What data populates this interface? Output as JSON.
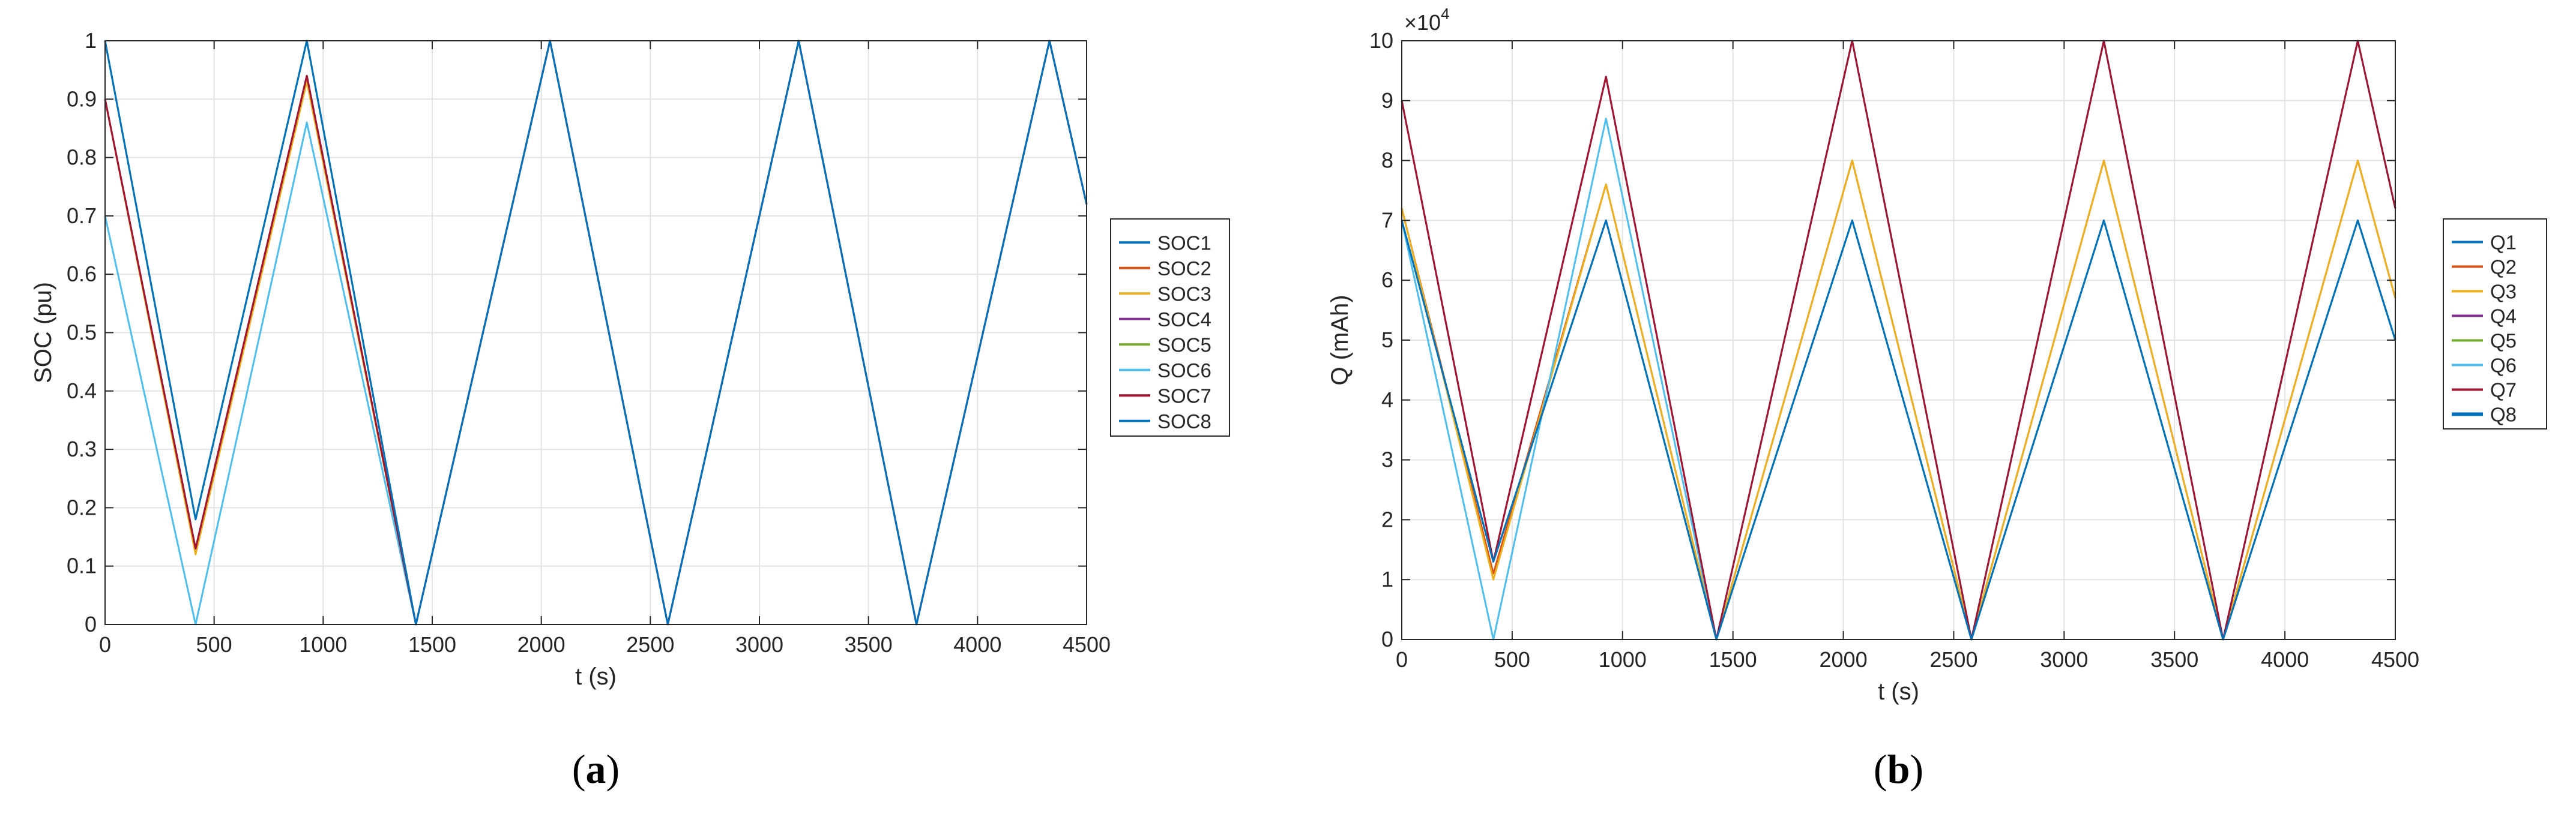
{
  "chart_data": [
    {
      "type": "line",
      "panel": "a",
      "caption_open": "(",
      "caption_letter": "a",
      "caption_close": ")",
      "xlabel": "t (s)",
      "ylabel": "SOC (pu)",
      "xlim": [
        0,
        4500
      ],
      "ylim": [
        0,
        1
      ],
      "xticks": [
        0,
        500,
        1000,
        1500,
        2000,
        2500,
        3000,
        3500,
        4000,
        4500
      ],
      "xtick_labels": [
        "0",
        "500",
        "1000",
        "1500",
        "2000",
        "2500",
        "3000",
        "3500",
        "4000",
        "4500"
      ],
      "yticks": [
        0,
        0.1,
        0.2,
        0.3,
        0.4,
        0.5,
        0.6,
        0.7,
        0.8,
        0.9,
        1
      ],
      "ytick_labels": [
        "0",
        "0.1",
        "0.2",
        "0.3",
        "0.4",
        "0.5",
        "0.6",
        "0.7",
        "0.8",
        "0.9",
        "1"
      ],
      "grid": true,
      "legend": "right",
      "series": [
        {
          "name": "SOC1",
          "color": "#0072BD",
          "x": [
            0,
            415,
            925,
            1425,
            2040,
            2580,
            3180,
            3720,
            4330,
            4500
          ],
          "y": [
            1.0,
            0.18,
            1.0,
            0.0,
            1.0,
            0.0,
            1.0,
            0.0,
            1.0,
            0.72
          ]
        },
        {
          "name": "SOC2",
          "color": "#D95319",
          "x": [
            0,
            415,
            925,
            1425,
            2040,
            2580,
            3180,
            3720,
            4330,
            4500
          ],
          "y": [
            0.9,
            0.13,
            0.94,
            0.0,
            1.0,
            0.0,
            1.0,
            0.0,
            1.0,
            0.72
          ]
        },
        {
          "name": "SOC3",
          "color": "#EDB120",
          "x": [
            0,
            415,
            925,
            1425,
            2040,
            2580,
            3180,
            3720,
            4330,
            4500
          ],
          "y": [
            0.9,
            0.12,
            0.93,
            0.0,
            1.0,
            0.0,
            1.0,
            0.0,
            1.0,
            0.72
          ]
        },
        {
          "name": "SOC4",
          "color": "#7E2F8E",
          "x": [
            0,
            415,
            925,
            1425,
            2040,
            2580,
            3180,
            3720,
            4330,
            4500
          ],
          "y": [
            0.9,
            0.13,
            0.94,
            0.0,
            1.0,
            0.0,
            1.0,
            0.0,
            1.0,
            0.72
          ]
        },
        {
          "name": "SOC5",
          "color": "#77AC30",
          "x": [
            0,
            415,
            925,
            1425,
            2040,
            2580,
            3180,
            3720,
            4330,
            4500
          ],
          "y": [
            1.0,
            0.18,
            1.0,
            0.0,
            1.0,
            0.0,
            1.0,
            0.0,
            1.0,
            0.72
          ]
        },
        {
          "name": "SOC6",
          "color": "#4DBEEE",
          "x": [
            0,
            415,
            925,
            1425,
            2040,
            2580,
            3180,
            3720,
            4330,
            4500
          ],
          "y": [
            0.7,
            0.0,
            0.86,
            0.0,
            1.0,
            0.0,
            1.0,
            0.0,
            1.0,
            0.72
          ]
        },
        {
          "name": "SOC7",
          "color": "#A2142F",
          "x": [
            0,
            415,
            925,
            1425,
            2040,
            2580,
            3180,
            3720,
            4330,
            4500
          ],
          "y": [
            0.9,
            0.13,
            0.94,
            0.0,
            1.0,
            0.0,
            1.0,
            0.0,
            1.0,
            0.72
          ]
        },
        {
          "name": "SOC8",
          "color": "#0072BD",
          "x": [
            0,
            415,
            925,
            1425,
            2040,
            2580,
            3180,
            3720,
            4330,
            4500
          ],
          "y": [
            1.0,
            0.18,
            1.0,
            0.0,
            1.0,
            0.0,
            1.0,
            0.0,
            1.0,
            0.72
          ]
        }
      ]
    },
    {
      "type": "line",
      "panel": "b",
      "caption_open": "(",
      "caption_letter": "b",
      "caption_close": ")",
      "xlabel": "t (s)",
      "ylabel": "Q (mAh)",
      "exponent_label": "×10",
      "exponent_power": "4",
      "xlim": [
        0,
        4500
      ],
      "ylim": [
        0,
        10
      ],
      "xticks": [
        0,
        500,
        1000,
        1500,
        2000,
        2500,
        3000,
        3500,
        4000,
        4500
      ],
      "xtick_labels": [
        "0",
        "500",
        "1000",
        "1500",
        "2000",
        "2500",
        "3000",
        "3500",
        "4000",
        "4500"
      ],
      "yticks": [
        0,
        1,
        2,
        3,
        4,
        5,
        6,
        7,
        8,
        9,
        10
      ],
      "ytick_labels": [
        "0",
        "1",
        "2",
        "3",
        "4",
        "5",
        "6",
        "7",
        "8",
        "9",
        "10"
      ],
      "grid": true,
      "legend": "right",
      "series": [
        {
          "name": "Q1",
          "color": "#0072BD",
          "x": [
            0,
            415,
            925,
            1425,
            2040,
            2580,
            3180,
            3720,
            4330,
            4500
          ],
          "y": [
            7.0,
            1.3,
            7.0,
            0.0,
            7.0,
            0.0,
            7.0,
            0.0,
            7.0,
            5.0
          ]
        },
        {
          "name": "Q2",
          "color": "#D95319",
          "x": [
            0,
            415,
            925,
            1425,
            2040,
            2580,
            3180,
            3720,
            4330,
            4500
          ],
          "y": [
            7.2,
            1.1,
            7.6,
            0.0,
            8.0,
            0.0,
            8.0,
            0.0,
            8.0,
            5.7
          ]
        },
        {
          "name": "Q3",
          "color": "#EDB120",
          "x": [
            0,
            415,
            925,
            1425,
            2040,
            2580,
            3180,
            3720,
            4330,
            4500
          ],
          "y": [
            7.2,
            1.0,
            7.6,
            0.0,
            8.0,
            0.0,
            8.0,
            0.0,
            8.0,
            5.7
          ]
        },
        {
          "name": "Q4",
          "color": "#7E2F8E",
          "x": [
            0,
            415,
            925,
            1425,
            2040,
            2580,
            3180,
            3720,
            4330,
            4500
          ],
          "y": [
            9.0,
            1.3,
            9.4,
            0.0,
            10.0,
            0.0,
            10.0,
            0.0,
            10.0,
            7.2
          ]
        },
        {
          "name": "Q5",
          "color": "#77AC30",
          "x": [
            0,
            415,
            925,
            1425,
            2040,
            2580,
            3180,
            3720,
            4330,
            4500
          ],
          "y": [
            7.0,
            1.3,
            7.0,
            0.0,
            7.0,
            0.0,
            7.0,
            0.0,
            7.0,
            5.0
          ]
        },
        {
          "name": "Q6",
          "color": "#4DBEEE",
          "x": [
            0,
            415,
            925,
            1425,
            2040,
            2580,
            3180,
            3720,
            4330,
            4500
          ],
          "y": [
            7.0,
            0.0,
            8.7,
            0.0,
            10.0,
            0.0,
            10.0,
            0.0,
            10.0,
            7.2
          ]
        },
        {
          "name": "Q7",
          "color": "#A2142F",
          "x": [
            0,
            415,
            925,
            1425,
            2040,
            2580,
            3180,
            3720,
            4330,
            4500
          ],
          "y": [
            9.0,
            1.3,
            9.4,
            0.0,
            10.0,
            0.0,
            10.0,
            0.0,
            10.0,
            7.2
          ]
        },
        {
          "name": "Q8",
          "color": "#0072BD",
          "x": [
            0,
            415,
            925,
            1425,
            2040,
            2580,
            3180,
            3720,
            4330,
            4500
          ],
          "y": [
            7.0,
            1.3,
            7.0,
            0.0,
            7.0,
            0.0,
            7.0,
            0.0,
            7.0,
            5.0
          ]
        }
      ]
    }
  ]
}
